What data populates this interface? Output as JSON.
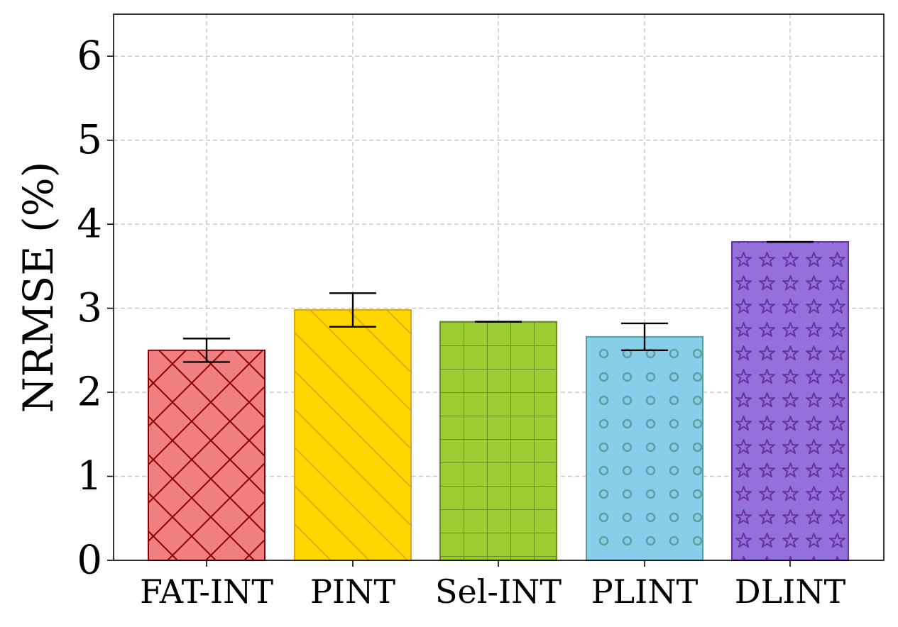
{
  "chart_data": {
    "type": "bar",
    "categories": [
      "FAT-INT",
      "PINT",
      "Sel-INT",
      "PLINT",
      "DLINT"
    ],
    "values": [
      2.5,
      2.98,
      2.84,
      2.66,
      3.79
    ],
    "errors": [
      0.14,
      0.2,
      0.0,
      0.16,
      0.0
    ],
    "title": "",
    "xlabel": "",
    "ylabel": "NRMSE (%)",
    "ylim": [
      0,
      6.5
    ],
    "yticks": [
      0,
      1,
      2,
      3,
      4,
      5,
      6
    ],
    "grid": true,
    "colors": [
      {
        "fill": "#F08080",
        "edge": "#8B0000",
        "hatch": "cross-diagonal"
      },
      {
        "fill": "#FFD700",
        "edge": "#DAA520",
        "hatch": "back-diagonal"
      },
      {
        "fill": "#9ACD32",
        "edge": "#6B8E23",
        "hatch": "grid"
      },
      {
        "fill": "#87CEEB",
        "edge": "#5F9EA0",
        "hatch": "circles"
      },
      {
        "fill": "#9370DB",
        "edge": "#663399",
        "hatch": "stars"
      }
    ]
  }
}
